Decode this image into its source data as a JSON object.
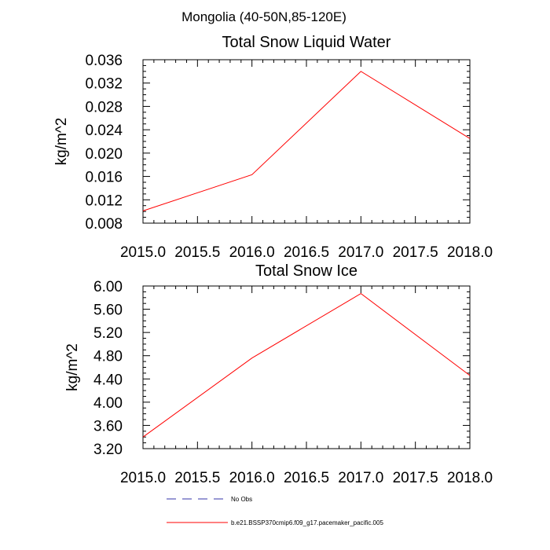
{
  "figure": {
    "suptitle": "Mongolia (40-50N,85-120E)"
  },
  "legend": {
    "entries": [
      {
        "label": "No Obs",
        "color": "#3333aa",
        "style": "dashed"
      },
      {
        "label": "b.e21.BSSP370cmip6.f09_g17.pacemaker_pacific.005",
        "color": "#ff0000",
        "style": "solid"
      }
    ]
  },
  "chart_data": [
    {
      "type": "line",
      "title": "Total Snow Liquid Water",
      "xlabel": "",
      "ylabel": "kg/m^2",
      "xlim": [
        2015.0,
        2018.0
      ],
      "ylim": [
        0.008,
        0.036
      ],
      "xticks": [
        "2015.0",
        "2015.5",
        "2016.0",
        "2016.5",
        "2017.0",
        "2017.5",
        "2018.0"
      ],
      "xtick_values": [
        2015.0,
        2015.5,
        2016.0,
        2016.5,
        2017.0,
        2017.5,
        2018.0
      ],
      "yticks": [
        "0.008",
        "0.012",
        "0.016",
        "0.020",
        "0.024",
        "0.028",
        "0.032",
        "0.036"
      ],
      "ytick_values": [
        0.008,
        0.012,
        0.016,
        0.02,
        0.024,
        0.028,
        0.032,
        0.036
      ],
      "grid": false,
      "series": [
        {
          "name": "b.e21.BSSP370cmip6.f09_g17.pacemaker_pacific.005",
          "color": "#ff0000",
          "x": [
            2015.0,
            2016.0,
            2017.0,
            2018.0
          ],
          "y": [
            0.0101,
            0.0163,
            0.034,
            0.0225
          ]
        }
      ]
    },
    {
      "type": "line",
      "title": "Total Snow Ice",
      "xlabel": "",
      "ylabel": "kg/m^2",
      "xlim": [
        2015.0,
        2018.0
      ],
      "ylim": [
        3.2,
        6.0
      ],
      "xticks": [
        "2015.0",
        "2015.5",
        "2016.0",
        "2016.5",
        "2017.0",
        "2017.5",
        "2018.0"
      ],
      "xtick_values": [
        2015.0,
        2015.5,
        2016.0,
        2016.5,
        2017.0,
        2017.5,
        2018.0
      ],
      "yticks": [
        "3.20",
        "3.60",
        "4.00",
        "4.40",
        "4.80",
        "5.20",
        "5.60",
        "6.00"
      ],
      "ytick_values": [
        3.2,
        3.6,
        4.0,
        4.4,
        4.8,
        5.2,
        5.6,
        6.0
      ],
      "grid": false,
      "series": [
        {
          "name": "b.e21.BSSP370cmip6.f09_g17.pacemaker_pacific.005",
          "color": "#ff0000",
          "x": [
            2015.0,
            2016.0,
            2017.0,
            2018.0
          ],
          "y": [
            3.4,
            4.76,
            5.87,
            4.46
          ]
        }
      ]
    }
  ]
}
